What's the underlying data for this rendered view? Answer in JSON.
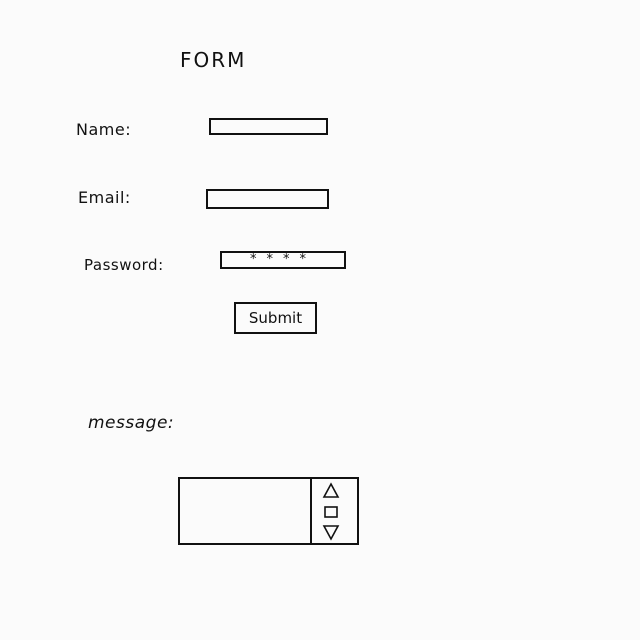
{
  "form": {
    "title": "FORM",
    "name_label": "Name:",
    "email_label": "Email:",
    "password_label": "Password:",
    "password_value": "****",
    "submit_label": "Submit",
    "message_label": "message:"
  },
  "icons": {
    "scroll_up": "triangle-up-icon",
    "scroll_thumb": "square-icon",
    "scroll_down": "triangle-down-icon"
  }
}
